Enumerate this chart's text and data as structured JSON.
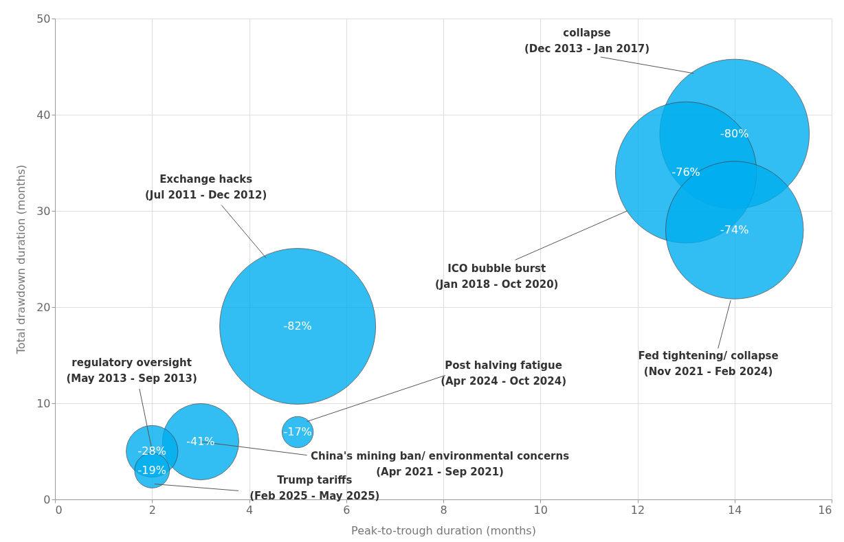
{
  "chart_data": {
    "type": "bubble",
    "xlabel": "Peak-to-trough duration (months)",
    "ylabel": "Total drawdown duration (months)",
    "x": [
      5,
      14,
      13,
      14,
      5,
      3,
      2,
      2
    ],
    "values": [
      18,
      38,
      34,
      28,
      7,
      6,
      5,
      3
    ],
    "sizes": [
      1,
      0.92,
      0.82,
      0.78,
      0.04,
      0.24,
      0.11,
      0.05
    ],
    "color": "#00aeef",
    "xlim": [
      0,
      16
    ],
    "xticks": [
      0,
      2,
      4,
      6,
      8,
      10,
      12,
      14,
      16
    ],
    "ylim": [
      0,
      50
    ],
    "yticks": [
      0,
      10,
      20,
      30,
      40,
      50
    ],
    "grid": true,
    "annotations": [
      {
        "text": "Exchange hacks\n(Jul 2011 - Dec 2012)",
        "x": 4.35,
        "y": 25.1
      },
      {
        "text": "collapse\n(Dec 2013 - Jan 2017)",
        "x": 13.16,
        "y": 44.3
      },
      {
        "text": "ICO bubble burst\n(Jan 2018 - Oct 2020)",
        "x": 11.79,
        "y": 30
      },
      {
        "text": "Fed tightening/ collapse\n(Nov 2021 - Feb 2024)",
        "x": 13.92,
        "y": 20.7
      },
      {
        "text": "Post halving fatigue\n(Apr 2024 - Oct 2024)",
        "x": 5.19,
        "y": 8.1
      },
      {
        "text": "China's mining ban/ environmental concerns\n(Apr 2021 - Sep 2021)",
        "x": 3,
        "y": 6
      },
      {
        "text": "regulatory oversight\n(May 2013 - Sep 2013)",
        "x": 2,
        "y": 5.1
      },
      {
        "text": "Trump tariffs\n(Feb 2025 - May 2025)",
        "x": 2.05,
        "y": 1.6
      },
      {
        "text": "-82%",
        "x": 5,
        "y": 18
      },
      {
        "text": "-80%",
        "x": 14,
        "y": 38
      },
      {
        "text": "-76%",
        "x": 13,
        "y": 34
      },
      {
        "text": "-74%",
        "x": 14,
        "y": 28
      },
      {
        "text": "-17%",
        "x": 5,
        "y": 7
      },
      {
        "text": "-41%",
        "x": 3,
        "y": 6
      },
      {
        "text": "-28%",
        "x": 2,
        "y": 5
      },
      {
        "text": "-19%",
        "x": 2,
        "y": 3
      }
    ]
  }
}
